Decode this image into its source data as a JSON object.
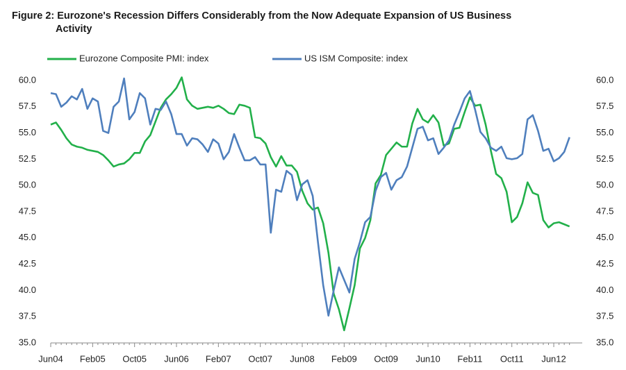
{
  "chart_data": {
    "type": "line",
    "title": "Figure 2: Eurozone's Recession Differs Considerably from the Now Adequate Expansion of US Business Activity",
    "categories": [
      "Jun04",
      null,
      null,
      null,
      null,
      null,
      null,
      null,
      "Feb05",
      null,
      null,
      null,
      null,
      null,
      null,
      null,
      "Oct05",
      null,
      null,
      null,
      null,
      null,
      null,
      null,
      "Jun06",
      null,
      null,
      null,
      null,
      null,
      null,
      null,
      "Feb07",
      null,
      null,
      null,
      null,
      null,
      null,
      null,
      "Oct07",
      null,
      null,
      null,
      null,
      null,
      null,
      null,
      "Jun08",
      null,
      null,
      null,
      null,
      null,
      null,
      null,
      "Feb09",
      null,
      null,
      null,
      null,
      null,
      null,
      null,
      "Oct09",
      null,
      null,
      null,
      null,
      null,
      null,
      null,
      "Jun10",
      null,
      null,
      null,
      null,
      null,
      null,
      null,
      "Feb11",
      null,
      null,
      null,
      null,
      null,
      null,
      null,
      "Oct11",
      null,
      null,
      null,
      null,
      null,
      null,
      null,
      "Jun12",
      null,
      null,
      null
    ],
    "series": [
      {
        "name": "Eurozone Composite PMI: index",
        "color": "#22b04a",
        "values": [
          55.8,
          56.0,
          55.3,
          54.5,
          53.9,
          53.7,
          53.6,
          53.4,
          53.3,
          53.2,
          52.9,
          52.4,
          51.8,
          52.0,
          52.1,
          52.5,
          53.1,
          53.1,
          54.2,
          54.8,
          56.1,
          57.4,
          58.2,
          58.7,
          59.3,
          60.3,
          58.2,
          57.6,
          57.3,
          57.4,
          57.5,
          57.4,
          57.6,
          57.3,
          56.9,
          56.8,
          57.7,
          57.6,
          57.4,
          54.6,
          54.5,
          54.0,
          52.7,
          51.8,
          52.8,
          51.9,
          51.9,
          51.3,
          49.5,
          48.3,
          47.7,
          47.9,
          46.4,
          43.6,
          39.7,
          38.2,
          36.2,
          38.3,
          40.5,
          44.0,
          45.0,
          46.7,
          50.2,
          51.0,
          52.9,
          53.5,
          54.1,
          53.7,
          53.7,
          55.9,
          57.3,
          56.3,
          56.0,
          56.7,
          56.0,
          53.8,
          54.0,
          55.4,
          55.5,
          57.0,
          58.4,
          57.6,
          57.7,
          55.8,
          53.3,
          51.1,
          50.7,
          49.4,
          46.5,
          47.0,
          48.3,
          50.3,
          49.3,
          49.1,
          46.7,
          46.0,
          46.4,
          46.5,
          46.3,
          46.1
        ]
      },
      {
        "name": "US ISM Composite: index",
        "color": "#4f7fbd",
        "axis": "y2",
        "values": [
          58.8,
          58.7,
          57.5,
          57.9,
          58.5,
          58.2,
          59.2,
          57.3,
          58.3,
          58.0,
          55.2,
          55.0,
          57.5,
          58.0,
          60.2,
          56.3,
          57.0,
          58.8,
          58.3,
          55.8,
          57.3,
          57.2,
          58.0,
          56.8,
          54.9,
          54.9,
          53.8,
          54.5,
          54.4,
          53.9,
          53.2,
          54.4,
          54.0,
          52.5,
          53.2,
          54.9,
          53.6,
          52.4,
          52.4,
          52.7,
          52.0,
          52.0,
          45.5,
          49.6,
          49.4,
          51.4,
          51.0,
          48.6,
          50.1,
          50.5,
          49.0,
          44.6,
          40.5,
          37.6,
          40.0,
          42.2,
          41.0,
          39.8,
          43.0,
          44.6,
          46.5,
          47.0,
          49.5,
          50.8,
          51.2,
          49.6,
          50.5,
          50.8,
          51.8,
          53.6,
          55.4,
          55.6,
          54.3,
          54.5,
          53.0,
          53.6,
          54.3,
          55.8,
          57.0,
          58.3,
          59.0,
          57.2,
          55.1,
          54.5,
          53.6,
          53.3,
          53.7,
          52.6,
          52.5,
          52.6,
          53.0,
          56.3,
          56.7,
          55.2,
          53.3,
          53.5,
          52.3,
          52.6,
          53.2,
          54.6
        ]
      }
    ],
    "ylim": [
      35,
      60
    ],
    "yticks": [
      {
        "value": 35,
        "label": "35.0"
      },
      {
        "value": 37.5,
        "label": "37.5"
      },
      {
        "value": 40,
        "label": "40.0"
      },
      {
        "value": 42.5,
        "label": "42.5"
      },
      {
        "value": 45,
        "label": "45.0"
      },
      {
        "value": 47.5,
        "label": "47.5"
      },
      {
        "value": 50,
        "label": "50.0"
      },
      {
        "value": 52.5,
        "label": "52.5"
      },
      {
        "value": 55,
        "label": "55.0"
      },
      {
        "value": 57.5,
        "label": "57.5"
      },
      {
        "value": 60,
        "label": "60.0"
      }
    ],
    "y2lim": [
      35,
      60
    ],
    "y2ticks": [
      {
        "value": 35,
        "label": "35.0"
      },
      {
        "value": 37.5,
        "label": "37.5"
      },
      {
        "value": 40,
        "label": "40.0"
      },
      {
        "value": 42.5,
        "label": "42.5"
      },
      {
        "value": 45,
        "label": "45.0"
      },
      {
        "value": 47.5,
        "label": "47.5"
      },
      {
        "value": 50,
        "label": "50.0"
      },
      {
        "value": 52.5,
        "label": "52.5"
      },
      {
        "value": 55,
        "label": "55.0"
      },
      {
        "value": 57.5,
        "label": "57.5"
      },
      {
        "value": 60,
        "label": "60.0"
      }
    ],
    "grid": false
  }
}
